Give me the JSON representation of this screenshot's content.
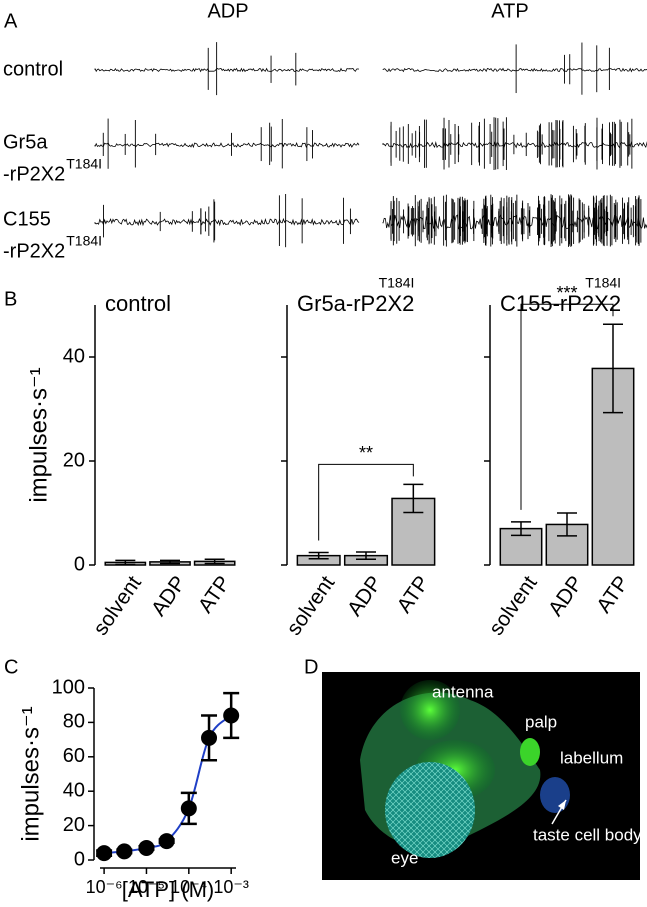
{
  "panel_labels": [
    "A",
    "B",
    "C",
    "D"
  ],
  "traces": {
    "columns": [
      "ADP",
      "ATP"
    ],
    "rows": [
      {
        "lines": [
          "control"
        ]
      },
      {
        "lines": [
          "Gr5a",
          "-rP2X2"
        ],
        "superscript": "T184I"
      },
      {
        "lines": [
          "C155",
          "-rP2X2"
        ],
        "superscript": "T184I"
      }
    ]
  },
  "chart_data": [
    {
      "type": "bar",
      "title": "control",
      "ylabel": "impulses·s⁻¹",
      "categories": [
        "solvent",
        "ADP",
        "ATP"
      ],
      "values": [
        0.5,
        0.6,
        0.7
      ],
      "errors": [
        0.4,
        0.3,
        0.4
      ],
      "color": "#bdbdbd",
      "ylim": [
        0,
        50
      ],
      "yticks": [
        0,
        20,
        40
      ]
    },
    {
      "type": "bar",
      "title": "Gr5a-rP2X2",
      "title_superscript": "T184I",
      "categories": [
        "solvent",
        "ADP",
        "ATP"
      ],
      "values": [
        1.8,
        1.8,
        12.8
      ],
      "errors": [
        0.6,
        0.7,
        2.7
      ],
      "color": "#bdbdbd",
      "ylim": [
        0,
        50
      ],
      "yticks": [
        0,
        20,
        40
      ],
      "significance": "**"
    },
    {
      "type": "bar",
      "title": "C155-rP2X2",
      "title_superscript": "T184I",
      "categories": [
        "solvent",
        "ADP",
        "ATP"
      ],
      "values": [
        7,
        7.8,
        37.8
      ],
      "errors": [
        1.3,
        2.2,
        8.5
      ],
      "color": "#bdbdbd",
      "ylim": [
        0,
        50
      ],
      "yticks": [
        0,
        20,
        40
      ],
      "significance": "***"
    },
    {
      "type": "scatter",
      "ylabel": "impulses·s⁻¹",
      "xlabel": "[ATP] (M)",
      "log_x": true,
      "x": [
        1e-06,
        3e-06,
        1e-05,
        3e-05,
        0.0001,
        0.0003,
        0.001
      ],
      "values": [
        4,
        5,
        7,
        11,
        30,
        71,
        84
      ],
      "errors": [
        1.5,
        1,
        1,
        1,
        9,
        13,
        13
      ],
      "color": "#000000",
      "line_color": "#1f3fc6",
      "xlim": [
        8e-07,
        0.0013
      ],
      "xticks": [
        {
          "value": 1e-06,
          "label": "10⁻⁶"
        },
        {
          "value": 1e-05,
          "label": "10⁻⁵"
        },
        {
          "value": 0.0001,
          "label": "10⁻⁴"
        },
        {
          "value": 0.001,
          "label": "10⁻³"
        }
      ],
      "ylim": [
        0,
        100
      ],
      "yticks": [
        0,
        20,
        40,
        60,
        80,
        100
      ]
    }
  ],
  "image": {
    "labels": [
      "antenna",
      "palp",
      "labellum",
      "taste cell body",
      "eye"
    ]
  }
}
